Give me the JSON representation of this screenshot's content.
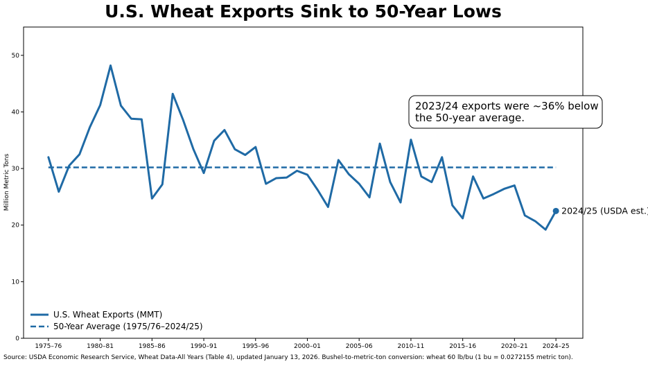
{
  "chart_data": {
    "type": "line",
    "title": "U.S. Wheat Exports Sink to 50-Year Lows",
    "xlabel": "",
    "ylabel": "Million Metric Tons",
    "ylim": [
      0,
      55
    ],
    "yticks": [
      0,
      10,
      20,
      30,
      40,
      50
    ],
    "xtick_labels": [
      "1975–76",
      "1980–81",
      "1985–86",
      "1990–91",
      "1995–96",
      "2000–01",
      "2005–06",
      "2010–11",
      "2015–16",
      "2020–21",
      "2024–25"
    ],
    "xtick_years": [
      1975,
      1980,
      1985,
      1990,
      1995,
      2000,
      2005,
      2010,
      2015,
      2020,
      2024
    ],
    "series": [
      {
        "name": "U.S. Wheat Exports (MMT)",
        "color": "#1f6aa5",
        "style": "solid",
        "x": [
          1975,
          1976,
          1977,
          1978,
          1979,
          1980,
          1981,
          1982,
          1983,
          1984,
          1985,
          1986,
          1987,
          1988,
          1989,
          1990,
          1991,
          1992,
          1993,
          1994,
          1995,
          1996,
          1997,
          1998,
          1999,
          2000,
          2001,
          2002,
          2003,
          2004,
          2005,
          2006,
          2007,
          2008,
          2009,
          2010,
          2011,
          2012,
          2013,
          2014,
          2015,
          2016,
          2017,
          2018,
          2019,
          2020,
          2021,
          2022,
          2023,
          2024
        ],
        "values": [
          32.0,
          25.9,
          30.5,
          32.5,
          37.3,
          41.2,
          48.2,
          41.1,
          38.8,
          38.7,
          24.7,
          27.2,
          43.2,
          38.6,
          33.4,
          29.2,
          34.9,
          36.8,
          33.4,
          32.4,
          33.8,
          27.3,
          28.3,
          28.4,
          29.6,
          28.9,
          26.2,
          23.2,
          31.5,
          29.0,
          27.3,
          24.9,
          34.4,
          27.6,
          24.0,
          35.1,
          28.6,
          27.6,
          32.0,
          23.5,
          21.2,
          28.6,
          24.7,
          25.5,
          26.4,
          27.0,
          21.7,
          20.7,
          19.2,
          22.5
        ]
      },
      {
        "name": "50-Year Average (1975/76–2024/25)",
        "color": "#1f6aa5",
        "style": "dashed",
        "x": [
          1975,
          2024
        ],
        "values": [
          30.2,
          30.2
        ]
      }
    ],
    "annotations": [
      {
        "text_lines": [
          "2023/24 exports were ~36% below",
          "the 50-year average."
        ]
      },
      {
        "text": "2024/25 (USDA est.)",
        "x": 2024,
        "y": 22.5
      }
    ],
    "legend": "lower-left",
    "grid": false
  },
  "source": "Source: USDA Economic Research Service, Wheat Data-All Years (Table 4), updated January 13, 2026. Bushel-to-metric-ton conversion: wheat 60 lb/bu (1 bu = 0.0272155 metric ton)."
}
